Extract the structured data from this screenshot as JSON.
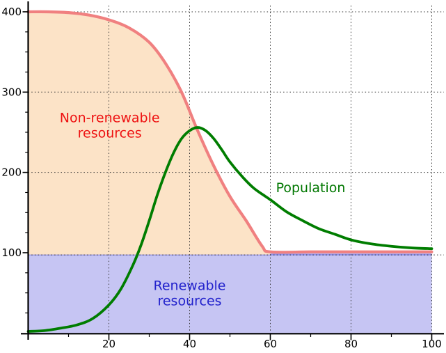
{
  "chart_data": {
    "type": "area",
    "title": "",
    "xlabel": "",
    "ylabel": "",
    "xlim": [
      0,
      103
    ],
    "ylim": [
      0,
      415
    ],
    "grid": "dotted",
    "legend_position": "none",
    "x_major_ticks": [
      20,
      40,
      60,
      80,
      100
    ],
    "x_tick_labels": [
      "20",
      "40",
      "60",
      "80",
      "100"
    ],
    "x_minor_ticks": [
      10,
      30,
      50,
      70,
      90
    ],
    "y_major_ticks": [
      100,
      200,
      300,
      400
    ],
    "y_tick_labels": [
      "100",
      "200",
      "300",
      "400"
    ],
    "y_minor_ticks": [
      25,
      50,
      75,
      125,
      150,
      175,
      225,
      250,
      275,
      325,
      350,
      375
    ],
    "colors": {
      "nonrenewable_line": "#f08080",
      "nonrenewable_fill": "#fce3c7",
      "renewable_line": "#9192e9",
      "renewable_fill": "#c6c5f3",
      "population_line": "#007d00",
      "grid": "#333333",
      "axis": "#000000"
    },
    "series": [
      {
        "name": "Non-renewable resources",
        "style": "area",
        "points": [
          [
            0,
            400
          ],
          [
            5,
            400
          ],
          [
            10,
            399
          ],
          [
            15,
            396
          ],
          [
            20,
            390
          ],
          [
            25,
            380
          ],
          [
            30,
            362
          ],
          [
            34,
            336
          ],
          [
            38,
            300
          ],
          [
            42,
            252
          ],
          [
            46,
            208
          ],
          [
            50,
            170
          ],
          [
            54,
            140
          ],
          [
            58,
            108
          ],
          [
            60,
            100
          ],
          [
            70,
            100
          ],
          [
            80,
            100
          ],
          [
            90,
            100
          ],
          [
            100,
            100
          ]
        ]
      },
      {
        "name": "Renewable resources",
        "style": "area",
        "points": [
          [
            0,
            100
          ],
          [
            100,
            100
          ]
        ]
      },
      {
        "name": "Population",
        "style": "line",
        "points": [
          [
            0,
            2
          ],
          [
            4,
            3
          ],
          [
            8,
            6
          ],
          [
            12,
            10
          ],
          [
            16,
            18
          ],
          [
            20,
            35
          ],
          [
            23,
            55
          ],
          [
            26,
            85
          ],
          [
            28,
            110
          ],
          [
            30,
            140
          ],
          [
            32,
            172
          ],
          [
            34,
            200
          ],
          [
            36,
            224
          ],
          [
            38,
            242
          ],
          [
            40,
            252
          ],
          [
            42,
            256
          ],
          [
            44,
            252
          ],
          [
            46,
            242
          ],
          [
            48,
            228
          ],
          [
            50,
            213
          ],
          [
            53,
            195
          ],
          [
            56,
            180
          ],
          [
            60,
            166
          ],
          [
            64,
            151
          ],
          [
            68,
            140
          ],
          [
            72,
            130
          ],
          [
            76,
            123
          ],
          [
            80,
            116
          ],
          [
            85,
            111
          ],
          [
            90,
            108
          ],
          [
            95,
            106
          ],
          [
            100,
            105
          ]
        ]
      }
    ]
  },
  "labels": {
    "nonrenewable": {
      "line1": "Non-renewable",
      "line2": "resources",
      "color": "#ee1111",
      "at": [
        20.2,
        258
      ]
    },
    "renewable": {
      "line1": "Renewable",
      "line2": "resources",
      "color": "#2222cc",
      "at": [
        40,
        49
      ]
    },
    "population": {
      "text": "Population",
      "color": "#007700",
      "at": [
        70,
        181
      ]
    }
  }
}
